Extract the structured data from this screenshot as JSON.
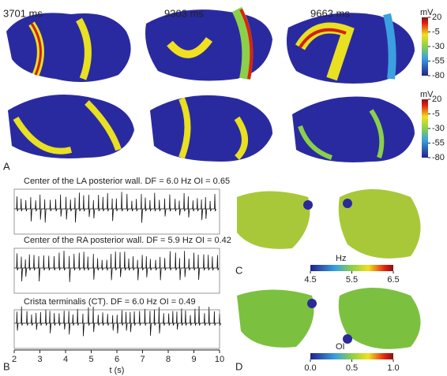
{
  "panel_a": {
    "label": "A",
    "times": [
      "3701 ms",
      "9303 ms",
      "9663 ms"
    ],
    "colorbars": [
      {
        "unit": "mV",
        "ticks": [
          20,
          -5,
          -30,
          -55,
          -80
        ]
      },
      {
        "unit": "mV",
        "ticks": [
          20,
          -5,
          -30,
          -55,
          -80
        ]
      }
    ]
  },
  "panel_b": {
    "label": "B",
    "traces": [
      "Center of the LA posterior wall. DF = 6.0 Hz OI = 0.65",
      "Center of the RA posterior wall. DF = 5.9 Hz OI = 0.42",
      "Crista terminalis (CT). DF = 6.0 Hz OI = 0.49"
    ],
    "xlabel": "t (s)",
    "xticks": [
      2,
      3,
      4,
      5,
      6,
      7,
      8,
      9,
      10
    ]
  },
  "panel_c": {
    "label": "C",
    "unit": "Hz",
    "ticks": [
      4.5,
      5.5,
      6.5
    ]
  },
  "panel_d": {
    "label": "D",
    "unit": "OI",
    "ticks": [
      {
        "value": 0,
        "label": "0.0"
      },
      0.5,
      {
        "value": 1,
        "label": "1.0"
      }
    ]
  }
}
